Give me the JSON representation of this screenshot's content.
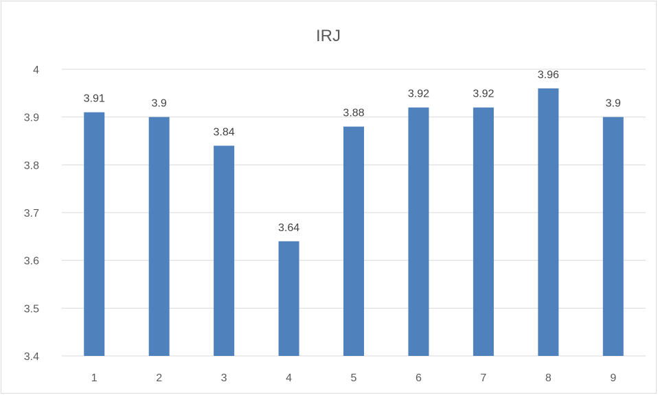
{
  "chart_data": {
    "type": "bar",
    "title": "IRJ",
    "categories": [
      "1",
      "2",
      "3",
      "4",
      "5",
      "6",
      "7",
      "8",
      "9"
    ],
    "values": [
      3.91,
      3.9,
      3.84,
      3.64,
      3.88,
      3.92,
      3.92,
      3.96,
      3.9
    ],
    "data_labels": [
      "3.91",
      "3.9",
      "3.84",
      "3.64",
      "3.88",
      "3.92",
      "3.92",
      "3.96",
      "3.9"
    ],
    "y_ticks": [
      "3.4",
      "3.5",
      "3.6",
      "3.7",
      "3.8",
      "3.9",
      "4"
    ],
    "ylim": [
      3.4,
      4.0
    ],
    "grid": true,
    "legend": "none",
    "bar_color": "#4f81bd",
    "grid_color": "#d9d9d9",
    "text_color": "#595959"
  }
}
